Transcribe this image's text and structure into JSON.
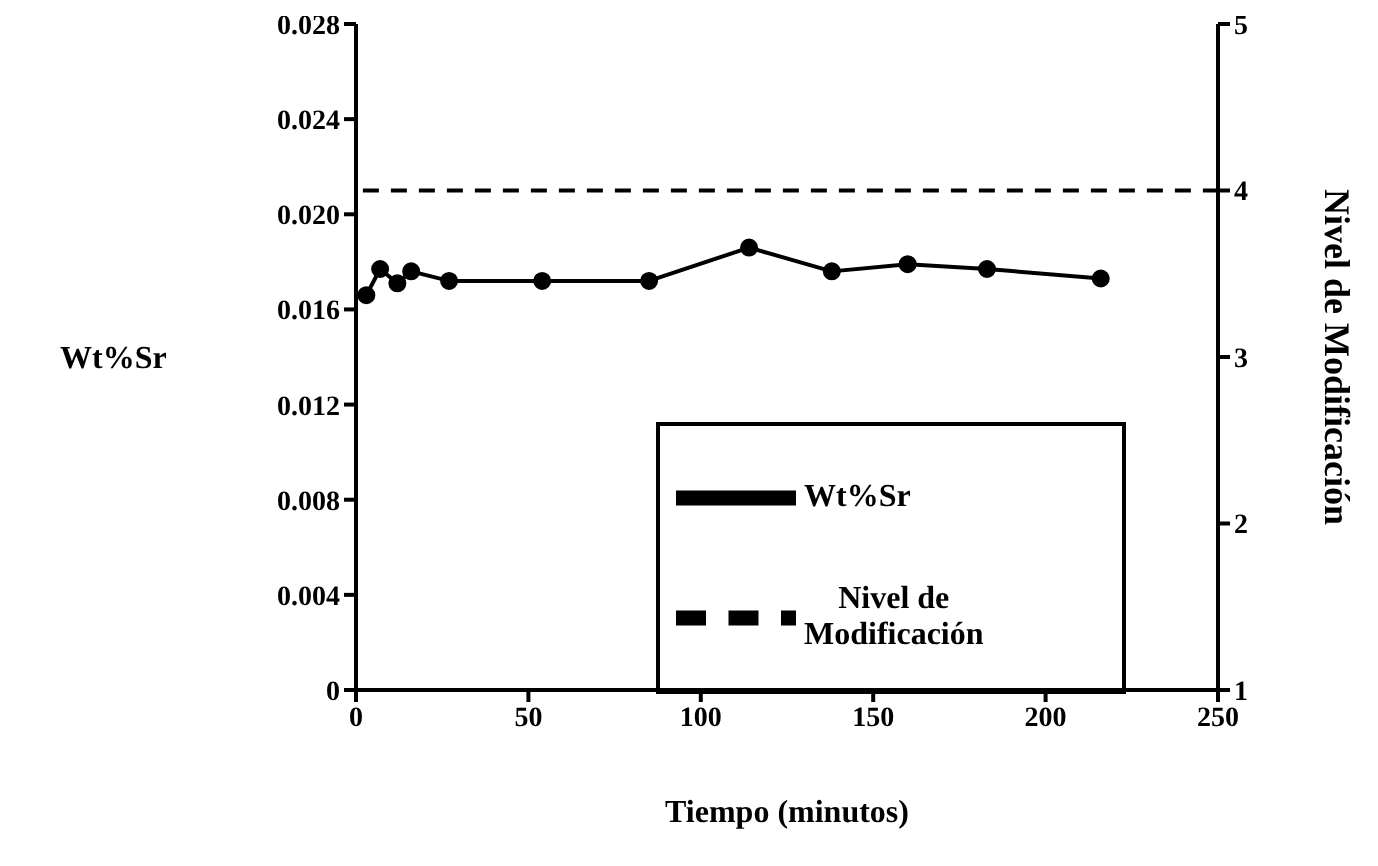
{
  "chart_data": {
    "type": "line",
    "xlabel": "Tiempo (minutos)",
    "ylabel": "Wt%Sr",
    "y2label": "Nivel de Modificación",
    "xlim": [
      0,
      250
    ],
    "xticks": [
      0,
      50,
      100,
      150,
      200,
      250
    ],
    "ylim": [
      0,
      0.028
    ],
    "yticks": [
      0,
      0.004,
      0.008,
      0.012,
      0.016,
      {
        "value": 0.02,
        "label": "0.020"
      },
      0.024,
      0.028
    ],
    "y2lim": [
      1,
      5
    ],
    "y2ticks": [
      1,
      2,
      3,
      4,
      5
    ],
    "legend": "bottom right",
    "series": [
      {
        "name": "Wt%Sr",
        "color": "#000000",
        "marker": "circle",
        "line_style": "solid",
        "x": [
          3,
          7,
          12,
          16,
          27,
          54,
          85,
          114,
          138,
          160,
          183,
          216
        ],
        "values": [
          0.0166,
          0.0177,
          0.0171,
          0.0176,
          0.0172,
          0.0172,
          0.0172,
          0.0186,
          0.0176,
          0.0179,
          0.0177,
          0.0173
        ]
      },
      {
        "name": "Nivel de Modificación",
        "color": "#000000",
        "marker": "none",
        "line_style": "dashed",
        "axis": "y2",
        "x": [
          2,
          250
        ],
        "values": [
          4,
          4
        ]
      }
    ]
  }
}
